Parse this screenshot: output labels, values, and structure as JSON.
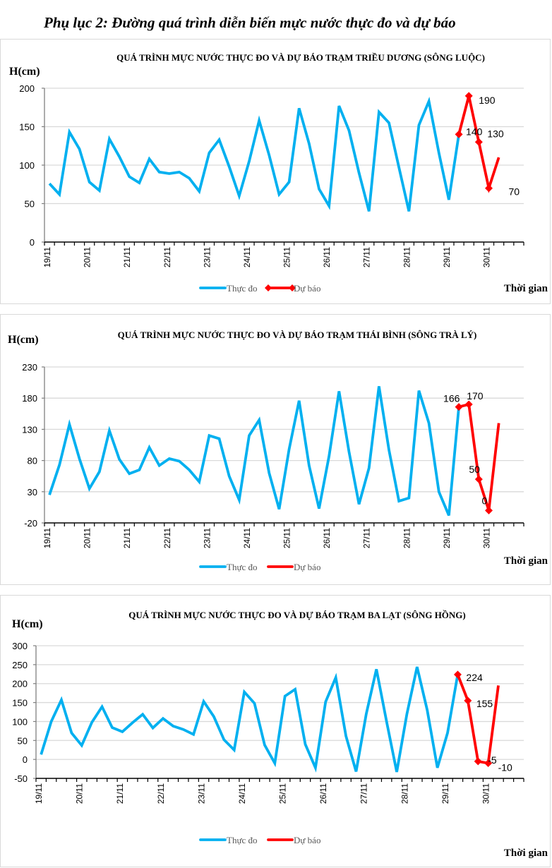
{
  "page_title": "Phụ lục 2: Đường quá trình diễn biến mực nước thực đo và dự báo",
  "colors": {
    "measured": "#00b0f0",
    "forecast": "#ff0000",
    "grid": "#d9d9d9",
    "border": "#d9d9d9"
  },
  "chart_data": [
    {
      "type": "line",
      "title": "QUÁ TRÌNH MỰC NƯỚC THỰC ĐO VÀ DỰ BÁO TRẠM TRIỀU DƯƠNG (SÔNG LUỘC)",
      "ylabel": "H(cm)",
      "xlabel": "Thời gian",
      "ylim": [
        0,
        200
      ],
      "yticks": [
        0,
        50,
        100,
        150,
        200
      ],
      "categories": [
        "19/11",
        "20/11",
        "21/11",
        "22/11",
        "23/11",
        "24/11",
        "25/11",
        "26/11",
        "27/11",
        "28/11",
        "29/11",
        "30/11"
      ],
      "points_per_day": 4,
      "grid": true,
      "legend_position": "bottom",
      "legend": [
        "Thực đo",
        "Dự báo"
      ],
      "legend_forecast_markers": true,
      "series": [
        {
          "name": "Thực đo",
          "start_index": 0,
          "values": [
            76,
            62,
            143,
            121,
            78,
            67,
            134,
            111,
            85,
            77,
            108,
            91,
            89,
            91,
            83,
            66,
            116,
            133,
            98,
            60,
            105,
            158,
            113,
            62,
            78,
            174,
            128,
            69,
            47,
            177,
            145,
            90,
            40,
            169,
            155,
            97,
            40,
            152,
            183,
            116,
            55,
            140
          ]
        },
        {
          "name": "Dự báo",
          "start_index": 41,
          "markers": true,
          "values": [
            140,
            190,
            130,
            70,
            110
          ],
          "labels": [
            "140",
            "190",
            "130",
            "70",
            ""
          ]
        }
      ]
    },
    {
      "type": "line",
      "title": "QUÁ TRÌNH MỰC NƯỚC THỰC ĐO VÀ DỰ BÁO TRẠM THÁI BÌNH (SÔNG TRÀ LÝ)",
      "ylabel": "H(cm)",
      "xlabel": "Thời gian",
      "ylim": [
        -20,
        230
      ],
      "yticks": [
        -20,
        30,
        80,
        130,
        180,
        230
      ],
      "categories": [
        "19/11",
        "20/11",
        "21/11",
        "22/11",
        "23/11",
        "24/11",
        "25/11",
        "26/11",
        "27/11",
        "28/11",
        "29/11",
        "30/11"
      ],
      "points_per_day": 4,
      "grid": true,
      "legend_position": "bottom",
      "legend": [
        "Thực đo",
        "Dự báo"
      ],
      "legend_forecast_markers": false,
      "series": [
        {
          "name": "Thực đo",
          "start_index": 0,
          "values": [
            25,
            73,
            138,
            83,
            35,
            62,
            128,
            82,
            59,
            65,
            101,
            72,
            83,
            79,
            65,
            46,
            120,
            115,
            55,
            17,
            120,
            145,
            60,
            2,
            98,
            176,
            72,
            3,
            87,
            191,
            94,
            10,
            68,
            199,
            97,
            15,
            20,
            192,
            140,
            30,
            -8,
            166
          ]
        },
        {
          "name": "Dự báo",
          "start_index": 41,
          "markers": true,
          "values": [
            166,
            170,
            50,
            0,
            140
          ],
          "labels": [
            "166",
            "170",
            "50",
            "0",
            ""
          ]
        }
      ]
    },
    {
      "type": "line",
      "title": "QUÁ TRÌNH MỰC NƯỚC THỰC ĐO VÀ DỰ BÁO TRẠM BA LẠT (SÔNG HỒNG)",
      "ylabel": "H(cm)",
      "xlabel": "Thời gian",
      "ylim": [
        -50,
        300
      ],
      "yticks": [
        -50,
        0,
        50,
        100,
        150,
        200,
        250,
        300
      ],
      "categories": [
        "19/11",
        "20/11",
        "21/11",
        "22/11",
        "23/11",
        "24/11",
        "25/11",
        "26/11",
        "27/11",
        "28/11",
        "29/11",
        "30/11"
      ],
      "points_per_day": 4,
      "grid": true,
      "legend_position": "bottom",
      "legend": [
        "Thực đo",
        "Dự báo"
      ],
      "legend_forecast_markers": false,
      "series": [
        {
          "name": "Thực đo",
          "start_index": 0,
          "values": [
            13,
            100,
            157,
            70,
            37,
            98,
            139,
            84,
            73,
            97,
            119,
            83,
            108,
            88,
            79,
            66,
            153,
            113,
            52,
            25,
            178,
            148,
            38,
            -10,
            167,
            185,
            40,
            -22,
            152,
            216,
            62,
            -32,
            120,
            238,
            100,
            -33,
            120,
            244,
            130,
            -22,
            70,
            224
          ]
        },
        {
          "name": "Dự báo",
          "start_index": 41,
          "markers": true,
          "values": [
            224,
            155,
            -5,
            -10,
            195
          ],
          "labels": [
            "224",
            "155",
            "-5",
            "-10",
            ""
          ]
        }
      ]
    }
  ]
}
